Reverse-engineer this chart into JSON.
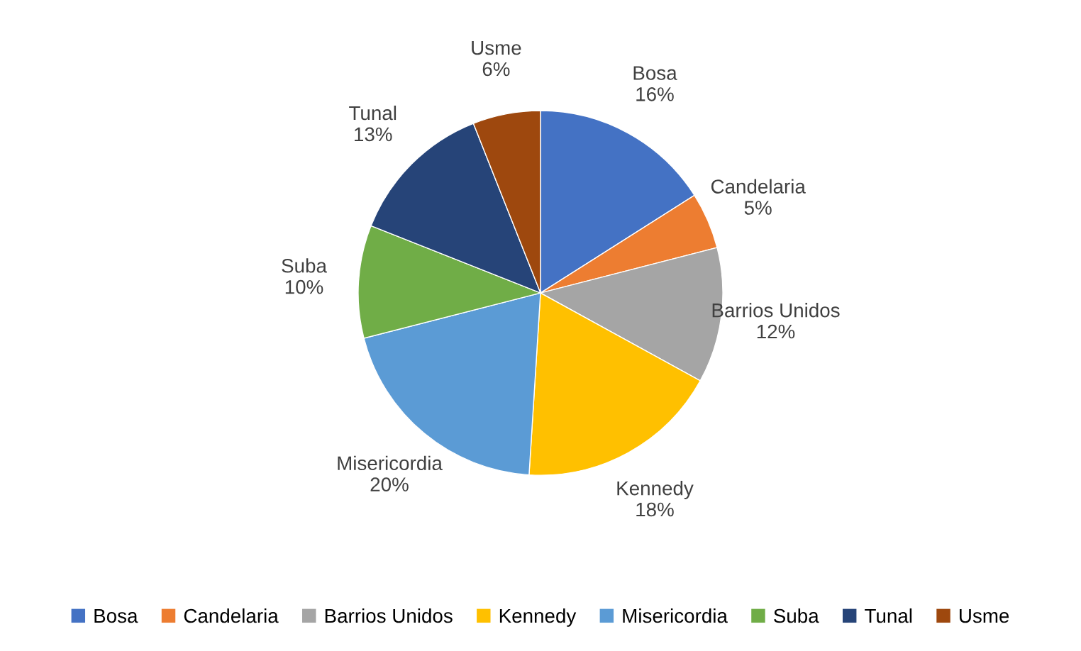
{
  "chart_data": {
    "type": "pie",
    "categories": [
      "Bosa",
      "Candelaria",
      "Barrios Unidos",
      "Kennedy",
      "Misericordia",
      "Suba",
      "Tunal",
      "Usme"
    ],
    "values": [
      16,
      5,
      12,
      18,
      20,
      10,
      13,
      6
    ],
    "value_labels": [
      "16%",
      "5%",
      "12%",
      "18%",
      "20%",
      "10%",
      "13%",
      "6%"
    ],
    "colors": [
      "#4472c4",
      "#ed7d31",
      "#a5a5a5",
      "#ffc000",
      "#5b9bd5",
      "#70ad47",
      "#264478",
      "#9e480e"
    ],
    "legend": "bottom"
  }
}
